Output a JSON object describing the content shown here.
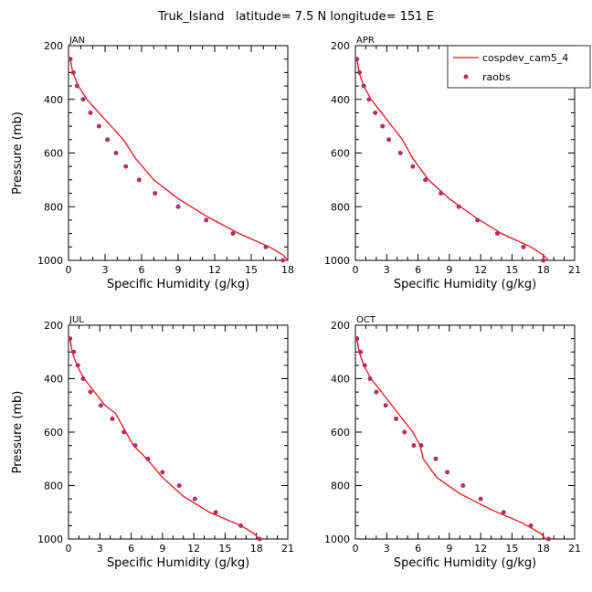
{
  "title": "Truk_Island   latitude= 7.5 N longitude= 151 E",
  "colors": {
    "model": "#e8141c",
    "obs": "#b03060"
  },
  "legend": {
    "model_label": "cospdev_cam5_4",
    "obs_label": "raobs"
  },
  "chart_data": [
    {
      "type": "line",
      "panel": "JAN",
      "xlabel": "Specific Humidity (g/kg)",
      "ylabel": "Pressure (mb)",
      "xlim": [
        0,
        18
      ],
      "xticks": [
        0,
        3,
        6,
        9,
        12,
        15,
        18
      ],
      "ylim": [
        1000,
        200
      ],
      "yticks": [
        200,
        400,
        600,
        800,
        1000
      ],
      "series": [
        {
          "kind": "line",
          "x": [
            0.15,
            0.35,
            0.8,
            1.5,
            2.5,
            3.5,
            4.5,
            5.5,
            7.0,
            9.0,
            11.5,
            14.0,
            16.5,
            17.6,
            18.0
          ],
          "y": [
            250,
            300,
            350,
            400,
            450,
            500,
            550,
            620,
            700,
            770,
            840,
            900,
            950,
            980,
            1000
          ]
        },
        {
          "kind": "scatter",
          "x": [
            0.15,
            0.4,
            0.7,
            1.2,
            1.8,
            2.5,
            3.2,
            3.9,
            4.7,
            5.8,
            7.1,
            9.0,
            11.3,
            13.5,
            16.2,
            17.6
          ],
          "y": [
            250,
            300,
            350,
            400,
            450,
            500,
            550,
            600,
            650,
            700,
            750,
            800,
            850,
            900,
            950,
            1000
          ]
        }
      ]
    },
    {
      "type": "line",
      "panel": "APR",
      "xlabel": "Specific Humidity (g/kg)",
      "ylabel": "",
      "xlim": [
        0,
        21
      ],
      "xticks": [
        0,
        3,
        6,
        9,
        12,
        15,
        18,
        21
      ],
      "ylim": [
        1000,
        200
      ],
      "yticks": [
        200,
        400,
        600,
        800,
        1000
      ],
      "series": [
        {
          "kind": "line",
          "x": [
            0.15,
            0.35,
            0.8,
            1.5,
            2.5,
            3.5,
            4.5,
            5.5,
            7.0,
            9.0,
            11.5,
            14.0,
            16.8,
            18.0,
            18.5
          ],
          "y": [
            250,
            300,
            350,
            400,
            450,
            500,
            550,
            620,
            700,
            770,
            840,
            900,
            950,
            980,
            1000
          ]
        },
        {
          "kind": "scatter",
          "x": [
            0.15,
            0.4,
            0.8,
            1.3,
            1.9,
            2.6,
            3.2,
            4.3,
            5.5,
            6.7,
            8.2,
            9.9,
            11.7,
            13.6,
            16.1,
            18.0
          ],
          "y": [
            250,
            300,
            350,
            400,
            450,
            500,
            550,
            600,
            650,
            700,
            750,
            800,
            850,
            900,
            950,
            1000
          ]
        }
      ]
    },
    {
      "type": "line",
      "panel": "JUL",
      "xlabel": "Specific Humidity (g/kg)",
      "ylabel": "Pressure (mb)",
      "xlim": [
        0,
        21
      ],
      "xticks": [
        0,
        3,
        6,
        9,
        12,
        15,
        18,
        21
      ],
      "ylim": [
        1000,
        200
      ],
      "yticks": [
        200,
        400,
        600,
        800,
        1000
      ],
      "series": [
        {
          "kind": "line",
          "x": [
            0.15,
            0.35,
            0.8,
            1.5,
            2.5,
            3.5,
            4.5,
            5.5,
            6.2,
            7.5,
            9.0,
            11.0,
            13.5,
            16.5,
            17.8,
            18.2
          ],
          "y": [
            250,
            300,
            350,
            400,
            450,
            500,
            530,
            600,
            650,
            700,
            770,
            840,
            900,
            950,
            980,
            1000
          ]
        },
        {
          "kind": "scatter",
          "x": [
            0.15,
            0.5,
            0.9,
            1.4,
            2.1,
            3.1,
            4.2,
            5.3,
            6.4,
            7.6,
            9.0,
            10.6,
            12.1,
            14.1,
            16.5,
            18.3
          ],
          "y": [
            250,
            300,
            350,
            400,
            450,
            500,
            550,
            600,
            650,
            700,
            750,
            800,
            850,
            900,
            950,
            1000
          ]
        }
      ]
    },
    {
      "type": "line",
      "panel": "OCT",
      "xlabel": "Specific Humidity (g/kg)",
      "ylabel": "",
      "xlim": [
        0,
        21
      ],
      "xticks": [
        0,
        3,
        6,
        9,
        12,
        15,
        18,
        21
      ],
      "ylim": [
        1000,
        200
      ],
      "yticks": [
        200,
        400,
        600,
        800,
        1000
      ],
      "series": [
        {
          "kind": "line",
          "x": [
            0.15,
            0.35,
            0.8,
            1.5,
            2.5,
            3.5,
            4.5,
            5.5,
            6.2,
            6.5,
            7.8,
            10.0,
            13.0,
            16.0,
            17.8,
            18.2
          ],
          "y": [
            250,
            300,
            350,
            400,
            450,
            500,
            550,
            600,
            650,
            700,
            770,
            830,
            890,
            940,
            980,
            1000
          ]
        },
        {
          "kind": "scatter",
          "x": [
            0.15,
            0.5,
            0.9,
            1.4,
            2.0,
            2.9,
            3.9,
            4.7,
            5.6,
            6.3,
            7.7,
            8.8,
            10.3,
            12.0,
            14.2,
            16.8,
            18.5
          ],
          "y": [
            250,
            300,
            350,
            400,
            450,
            500,
            550,
            600,
            650,
            650,
            700,
            750,
            800,
            850,
            900,
            950,
            1000
          ]
        }
      ]
    }
  ]
}
